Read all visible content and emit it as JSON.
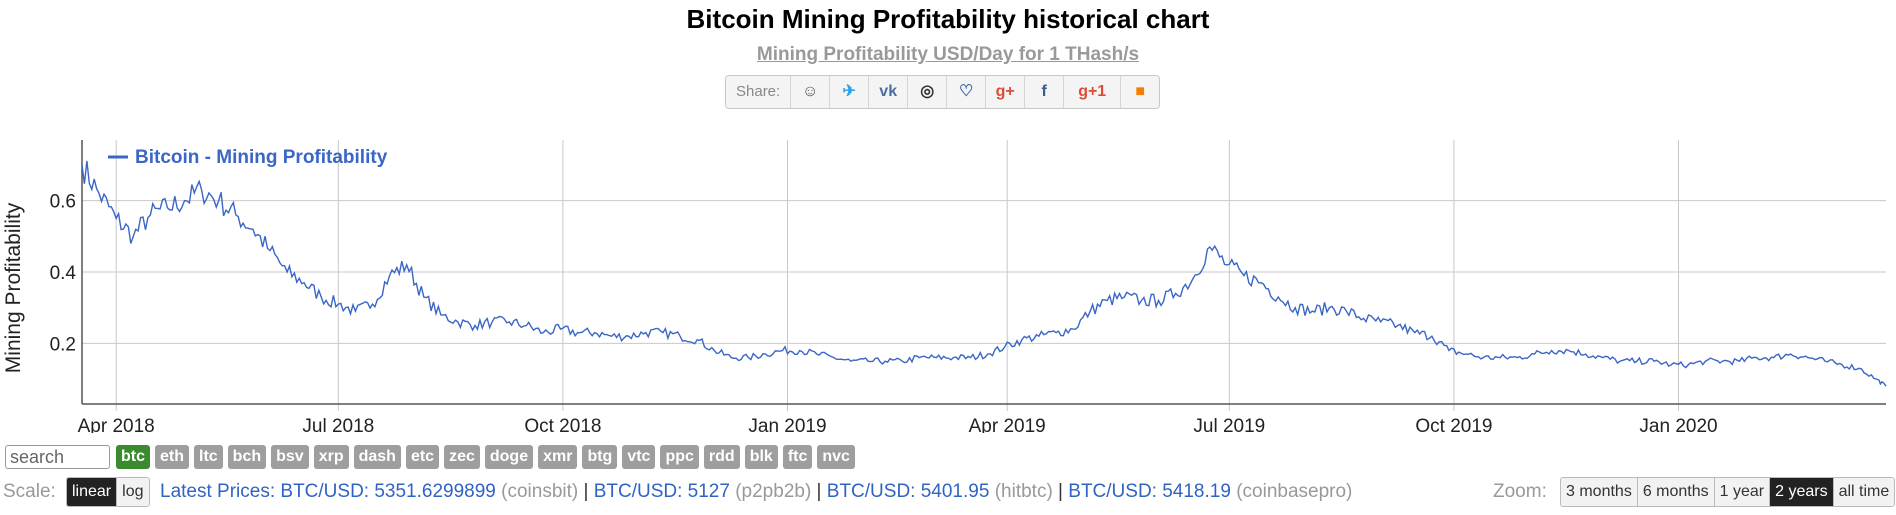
{
  "page": {
    "title": "Bitcoin Mining Profitability historical chart",
    "subtitle": "Mining Profitability USD/Day for 1 THash/s"
  },
  "share": {
    "label": "Share:",
    "buttons": [
      {
        "name": "reddit-icon",
        "glyph": "☺",
        "color": "#555555"
      },
      {
        "name": "twitter-icon",
        "glyph": "✈",
        "color": "#2aa3e6"
      },
      {
        "name": "vk-icon",
        "glyph": "vk",
        "color": "#4a6ea0"
      },
      {
        "name": "weibo-icon",
        "glyph": "◎",
        "color": "#333333"
      },
      {
        "name": "like-icon",
        "glyph": "♡",
        "color": "#4a6ea0"
      },
      {
        "name": "google-plus-icon",
        "glyph": "g+",
        "color": "#dd4b39"
      },
      {
        "name": "facebook-icon",
        "glyph": "f",
        "color": "#3b5998"
      },
      {
        "name": "google-plus-one-icon",
        "glyph": "g+1",
        "color": "#dd4b39"
      },
      {
        "name": "blogger-icon",
        "glyph": "■",
        "color": "#f57d00"
      }
    ]
  },
  "chart_data": {
    "type": "line",
    "ylabel": "Mining Profitability",
    "xlabel": "",
    "legend": {
      "placement": "top-left",
      "entries": [
        "Bitcoin - Mining Profitability"
      ]
    },
    "grid": true,
    "x_range": [
      "2018-03-18",
      "2020-03-26"
    ],
    "ylim": [
      0.03,
      0.77
    ],
    "y_ticks": [
      0.2,
      0.4,
      0.6
    ],
    "y_tick_labels": [
      "0.2",
      "0.4",
      "0.6"
    ],
    "x_ticks": [
      "2018-04-01",
      "2018-07-01",
      "2018-10-01",
      "2019-01-01",
      "2019-04-01",
      "2019-07-01",
      "2019-10-01",
      "2020-01-01"
    ],
    "x_tick_labels": [
      "Apr 2018",
      "Jul 2018",
      "Oct 2018",
      "Jan 2019",
      "Apr 2019",
      "Jul 2019",
      "Oct 2019",
      "Jan 2020"
    ],
    "series": [
      {
        "name": "Bitcoin - Mining Profitability",
        "color": "#3a66c6",
        "x": [
          "2018-03-18",
          "2018-03-25",
          "2018-04-01",
          "2018-04-08",
          "2018-04-15",
          "2018-04-22",
          "2018-04-29",
          "2018-05-06",
          "2018-05-13",
          "2018-05-20",
          "2018-05-27",
          "2018-06-03",
          "2018-06-10",
          "2018-06-17",
          "2018-06-24",
          "2018-07-01",
          "2018-07-08",
          "2018-07-15",
          "2018-07-22",
          "2018-07-29",
          "2018-08-05",
          "2018-08-12",
          "2018-08-19",
          "2018-08-26",
          "2018-09-02",
          "2018-09-09",
          "2018-09-16",
          "2018-09-23",
          "2018-09-30",
          "2018-10-07",
          "2018-10-14",
          "2018-10-21",
          "2018-10-28",
          "2018-11-04",
          "2018-11-11",
          "2018-11-18",
          "2018-11-25",
          "2018-12-02",
          "2018-12-09",
          "2018-12-16",
          "2018-12-23",
          "2018-12-30",
          "2019-01-06",
          "2019-01-13",
          "2019-01-20",
          "2019-01-27",
          "2019-02-03",
          "2019-02-10",
          "2019-02-17",
          "2019-02-24",
          "2019-03-03",
          "2019-03-10",
          "2019-03-17",
          "2019-03-24",
          "2019-03-31",
          "2019-04-07",
          "2019-04-14",
          "2019-04-21",
          "2019-04-28",
          "2019-05-05",
          "2019-05-12",
          "2019-05-19",
          "2019-05-26",
          "2019-06-02",
          "2019-06-09",
          "2019-06-16",
          "2019-06-23",
          "2019-06-30",
          "2019-07-07",
          "2019-07-14",
          "2019-07-21",
          "2019-07-28",
          "2019-08-04",
          "2019-08-11",
          "2019-08-18",
          "2019-08-25",
          "2019-09-01",
          "2019-09-08",
          "2019-09-15",
          "2019-09-22",
          "2019-09-29",
          "2019-10-06",
          "2019-10-13",
          "2019-10-20",
          "2019-10-27",
          "2019-11-03",
          "2019-11-10",
          "2019-11-17",
          "2019-11-24",
          "2019-12-01",
          "2019-12-08",
          "2019-12-15",
          "2019-12-22",
          "2019-12-29",
          "2020-01-05",
          "2020-01-12",
          "2020-01-19",
          "2020-01-26",
          "2020-02-02",
          "2020-02-09",
          "2020-02-16",
          "2020-02-23",
          "2020-03-01",
          "2020-03-08",
          "2020-03-15",
          "2020-03-22",
          "2020-03-26"
        ],
        "values": [
          0.7,
          0.62,
          0.55,
          0.5,
          0.56,
          0.58,
          0.6,
          0.63,
          0.6,
          0.56,
          0.52,
          0.46,
          0.4,
          0.37,
          0.33,
          0.31,
          0.29,
          0.31,
          0.39,
          0.42,
          0.33,
          0.28,
          0.26,
          0.25,
          0.26,
          0.26,
          0.25,
          0.23,
          0.24,
          0.23,
          0.23,
          0.22,
          0.22,
          0.23,
          0.23,
          0.22,
          0.21,
          0.18,
          0.16,
          0.16,
          0.17,
          0.18,
          0.18,
          0.17,
          0.16,
          0.15,
          0.15,
          0.15,
          0.15,
          0.16,
          0.16,
          0.16,
          0.16,
          0.17,
          0.19,
          0.21,
          0.22,
          0.23,
          0.24,
          0.29,
          0.32,
          0.33,
          0.32,
          0.32,
          0.34,
          0.38,
          0.47,
          0.42,
          0.39,
          0.37,
          0.33,
          0.3,
          0.29,
          0.3,
          0.29,
          0.27,
          0.26,
          0.25,
          0.23,
          0.22,
          0.18,
          0.17,
          0.16,
          0.16,
          0.16,
          0.17,
          0.18,
          0.18,
          0.17,
          0.16,
          0.15,
          0.15,
          0.15,
          0.14,
          0.14,
          0.15,
          0.15,
          0.15,
          0.16,
          0.16,
          0.17,
          0.16,
          0.15,
          0.14,
          0.13,
          0.1,
          0.08
        ]
      }
    ]
  },
  "coins": {
    "search_placeholder": "search",
    "items": [
      "btc",
      "eth",
      "ltc",
      "bch",
      "bsv",
      "xrp",
      "dash",
      "etc",
      "zec",
      "doge",
      "xmr",
      "btg",
      "vtc",
      "ppc",
      "rdd",
      "blk",
      "ftc",
      "nvc"
    ],
    "active": "btc"
  },
  "bottom": {
    "scale_label": "Scale:",
    "scale_options": [
      "linear",
      "log"
    ],
    "scale_active": "linear",
    "prices_label": "Latest Prices:",
    "prices": [
      {
        "pair": "BTC/USD:",
        "value": "5351.6299899",
        "source": "(coinsbit)"
      },
      {
        "pair": "BTC/USD:",
        "value": "5127",
        "source": "(p2pb2b)"
      },
      {
        "pair": "BTC/USD:",
        "value": "5401.95",
        "source": "(hitbtc)"
      },
      {
        "pair": "BTC/USD:",
        "value": "5418.19",
        "source": "(coinbasepro)"
      }
    ],
    "separator": "|",
    "zoom_label": "Zoom:",
    "zoom_options": [
      "3 months",
      "6 months",
      "1 year",
      "2 years",
      "all time"
    ],
    "zoom_active": "2 years"
  }
}
